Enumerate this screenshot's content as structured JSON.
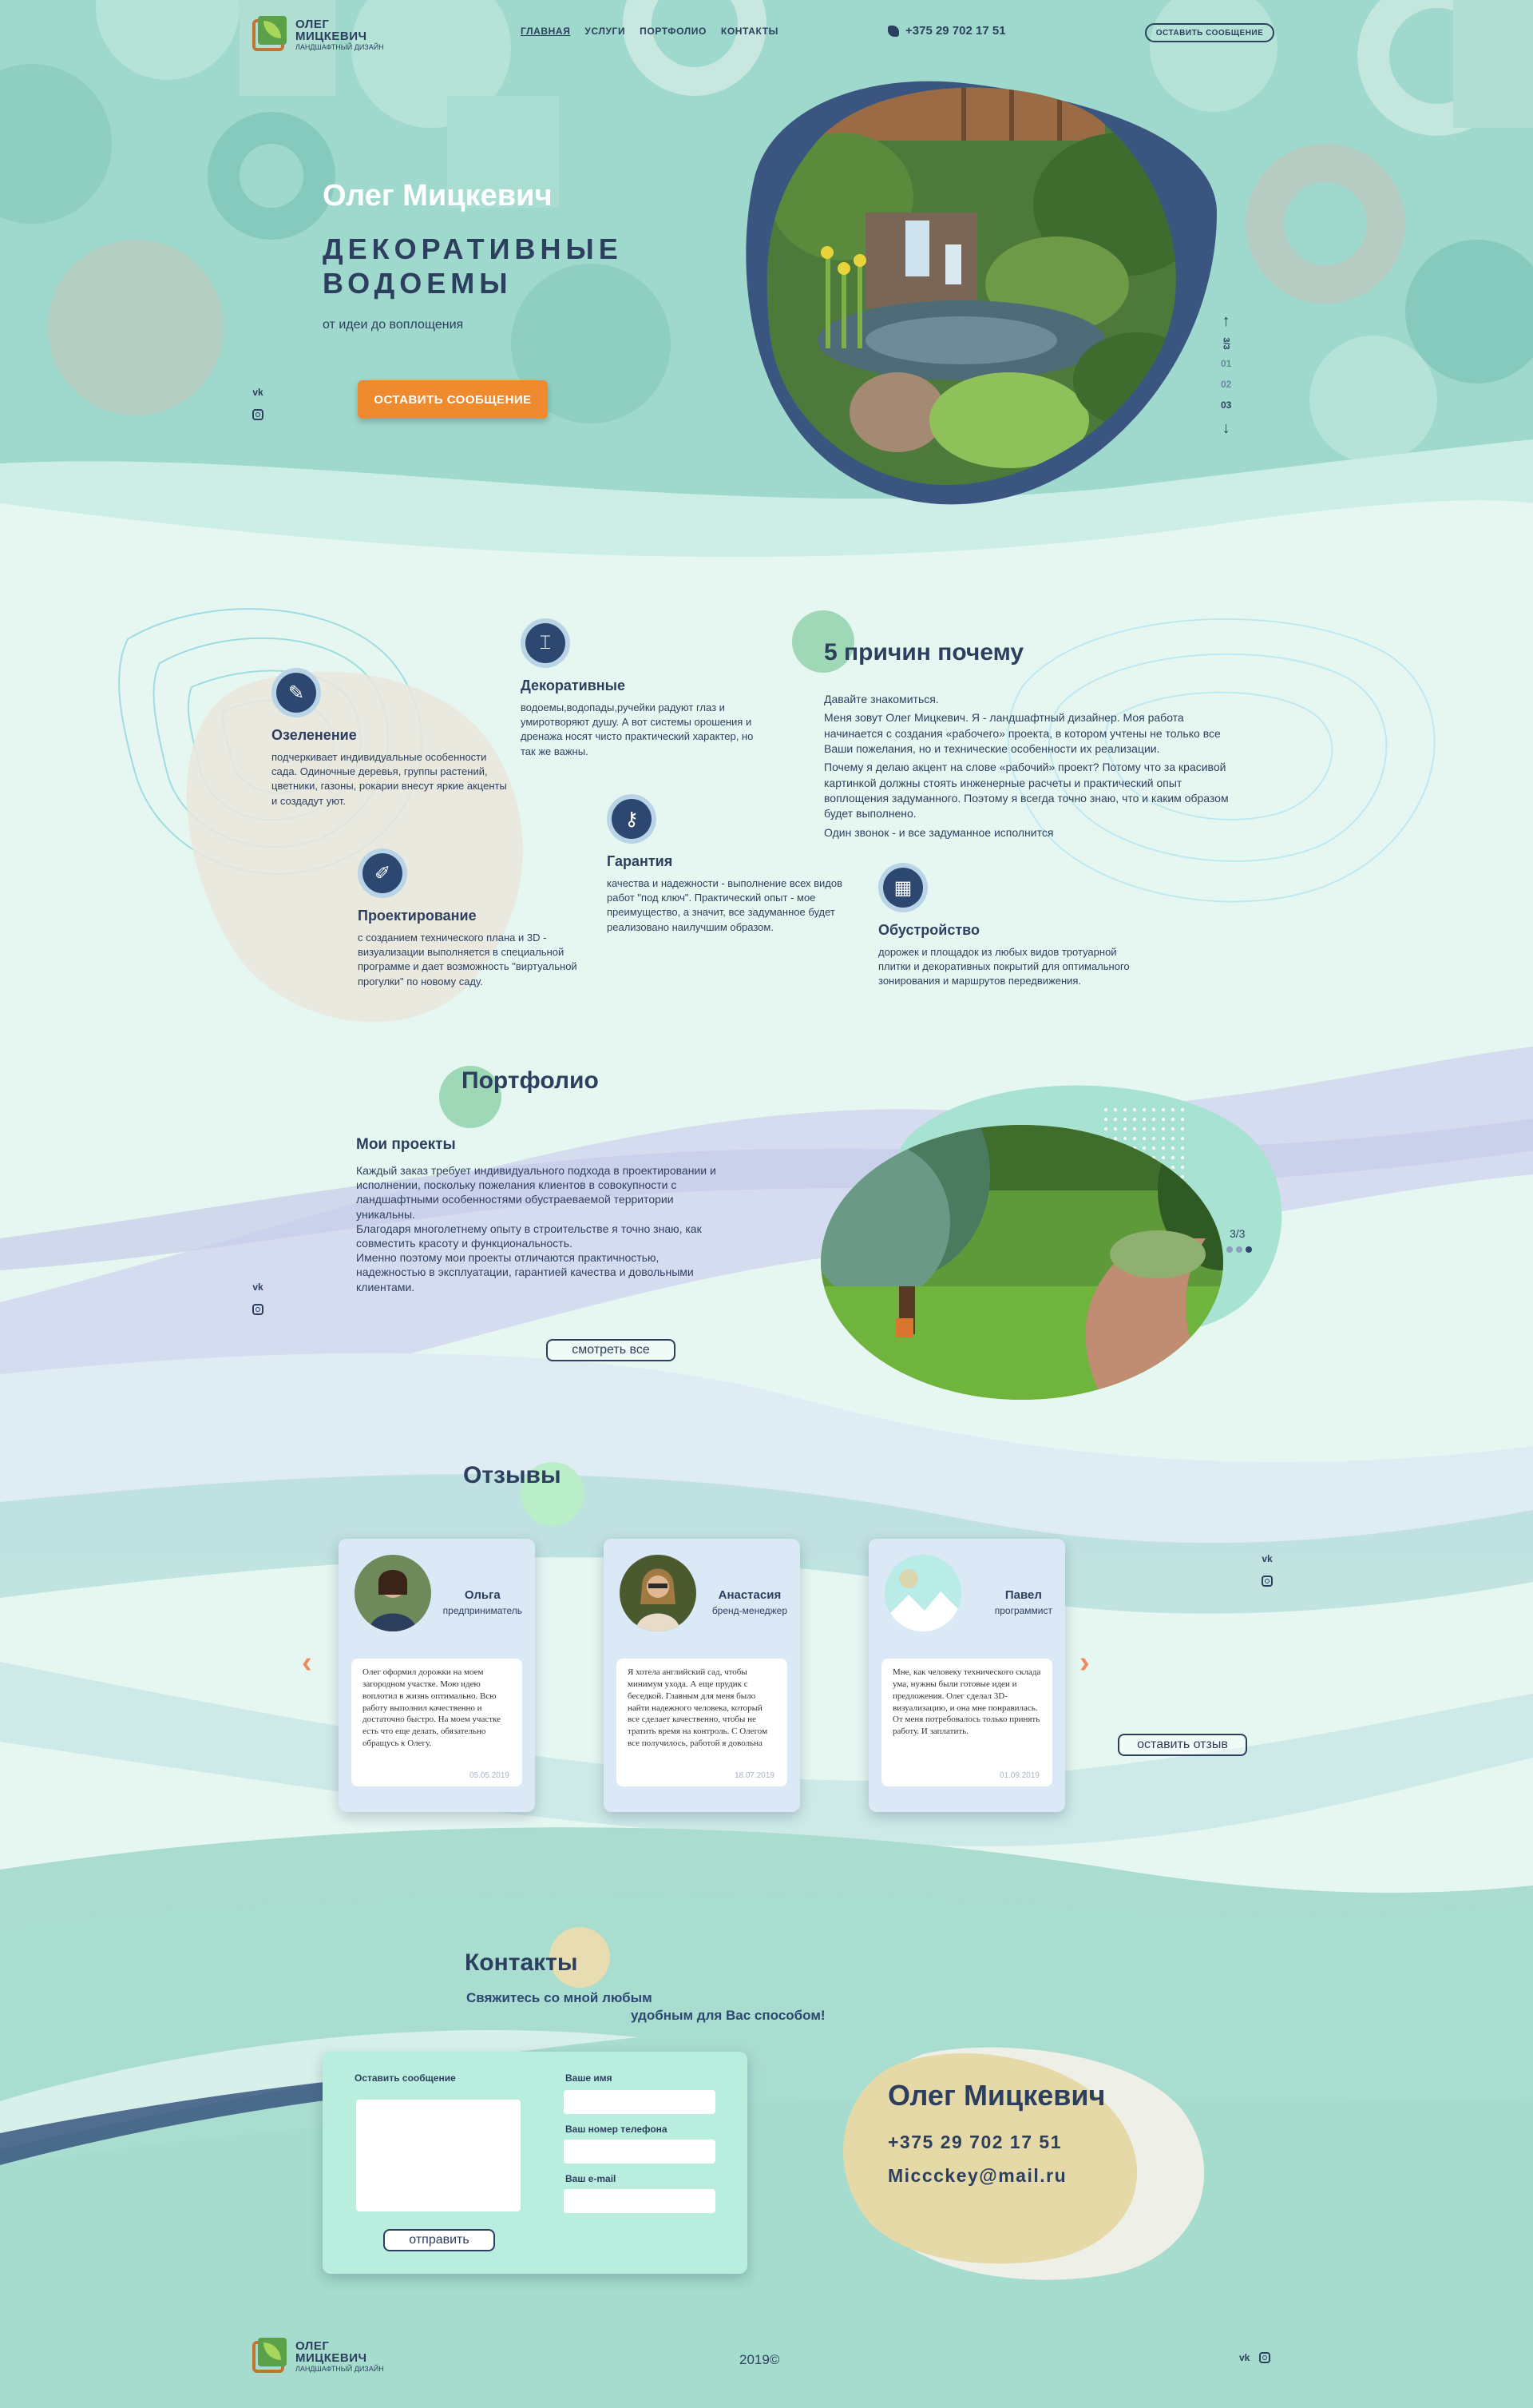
{
  "brand": {
    "line1": "ОЛЕГ",
    "line2": "МИЦКЕВИЧ",
    "line3": "ЛАНДШАФТНЫЙ ДИЗАЙН"
  },
  "nav": {
    "items": [
      "ГЛАВНАЯ",
      "УСЛУГИ",
      "ПОРТФОЛИО",
      "КОНТАКТЫ"
    ],
    "phone": "+375 29 702 17 51",
    "message_button": "ОСТАВИТЬ СООБЩЕНИЕ"
  },
  "hero": {
    "name": "Олег Мицкевич",
    "title": "ДЕКОРАТИВНЫЕ ВОДОЕМЫ",
    "subtitle": "от идеи до воплощения",
    "cta": "ОСТАВИТЬ СООБЩЕНИЕ",
    "slider": {
      "current": "3/3",
      "items": [
        "01",
        "02",
        "03"
      ]
    }
  },
  "social": {
    "vk": "vk"
  },
  "reasons": {
    "title": "5 причин почему",
    "features": [
      {
        "icon": "sprout-icon",
        "title": "Озеленение",
        "text": "подчеркивает индивидуальные особенности сада. Одиночные деревья, группы растений, цветники, газоны, рокарии внесут яркие акценты и создадут уют."
      },
      {
        "icon": "faucet-icon",
        "title": "Декоративные",
        "text": "водоемы,водопады,ручейки радуют глаз и умиротворяют душу. А вот системы орошения и дренажа носят чисто практический характер, но так же важны."
      },
      {
        "icon": "pencil-ruler-icon",
        "title": "Проектирование",
        "text": "с созданием технического плана и 3D - визуализации выполняется в специальной программе и дает возможность \"виртуальной прогулки\" по новому саду."
      },
      {
        "icon": "key-icon",
        "title": "Гарантия",
        "text": "качества и надежности - выполнение всех видов работ \"под ключ\". Практический опыт - мое преимущество, а значит, все задуманное будет реализовано наилучшим образом."
      },
      {
        "icon": "bricks-icon",
        "title": "Обустройство",
        "text": "дорожек и площадок из любых видов тротуарной плитки и декоративных покрытий для оптимального зонирования и маршрутов передвижения."
      }
    ],
    "about": [
      "Давайте знакомиться.",
      "Меня зовут Олег Мицкевич. Я - ландшафтный дизайнер. Моя работа начинается с создания «рабочего» проекта, в котором учтены не только все Ваши пожелания, но и технические особенности их реализации.",
      "Почему я делаю акцент на слове «рабочий» проект? Потому что за красивой картинкой должны стоять инженерные расчеты и практический опыт воплощения задуманного. Поэтому я всегда точно знаю, что и каким образом будет выполнено.",
      "Один звонок - и все задуманное исполнится"
    ]
  },
  "portfolio": {
    "title": "Портфолио",
    "subtitle": "Мои проекты",
    "text": [
      "Каждый заказ требует индивидуального подхода в проектировании и исполнении, поскольку пожелания клиентов в совокупности с ландшафтными особенностями обустраеваемой территории уникальны.",
      "Благодаря многолетнему опыту в строительстве я точно знаю, как совместить красоту и функциональность.",
      "Именно поэтому мои проекты отличаются практичностью, надежностью в эксплуатации, гарантией качества и довольными клиентами."
    ],
    "button": "смотреть все",
    "counter": "3/3"
  },
  "reviews": {
    "title": "Отзывы",
    "button": "оставить отзыв",
    "items": [
      {
        "name": "Ольга",
        "role": "предприниматель",
        "text": "Олег оформил дорожки на моем загородном участке. Мою идею воплотил в жизнь оптимально. Всю работу выполнил качественно и достаточно быстро. На моем участке есть что еще делать, обязательно обращусь к Олегу.",
        "date": "05.05.2019"
      },
      {
        "name": "Анастасия",
        "role": "бренд-менеджер",
        "text": "Я хотела английский сад, чтобы минимум ухода. А еще прудик с беседкой. Главным для меня было найти надежного человека, который все сделает качественно, чтобы не тратить время на контроль. С Олегом все получилось, работой я довольна",
        "date": "18.07.2019"
      },
      {
        "name": "Павел",
        "role": "программист",
        "text": "Мне, как человеку технического склада ума, нужны были готовые идеи и предложения. Олег сделал 3D-визуализацию, и она мне понравилась. От меня потребовалось только принять работу. И заплатить.",
        "date": "01.09.2019"
      }
    ]
  },
  "contacts": {
    "title": "Контакты",
    "sub1": "Свяжитесь со мной любым",
    "sub2": "удобным для Вас способом!",
    "form": {
      "message_label": "Оставить сообщение",
      "name_label": "Ваше имя",
      "phone_label": "Ваш номер телефона",
      "email_label": "Ваш e-mail",
      "submit": "отправить"
    },
    "card": {
      "name": "Олег Мицкевич",
      "phone": "+375 29 702 17 51",
      "email": "Miccckey@mail.ru"
    }
  },
  "footer": {
    "year": "2019©"
  },
  "colors": {
    "navy": "#2d3f5e",
    "accent_orange": "#f08a2e",
    "mint": "#9fd8cc"
  }
}
